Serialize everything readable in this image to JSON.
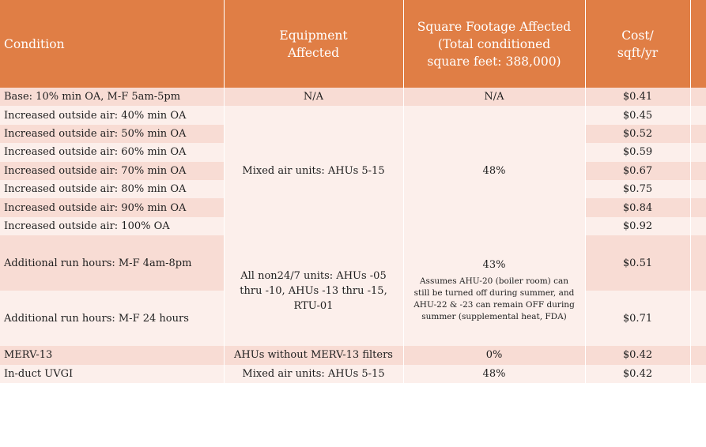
{
  "header": {
    "condition": "Condition",
    "equipment": [
      "Equipment",
      "Affected"
    ],
    "square": [
      "Square Footage Affected",
      "(Total conditioned",
      "square feet: 388,000)"
    ],
    "cost": [
      "Cost/",
      "sqft/yr"
    ]
  },
  "rows": [
    {
      "condition": "Base: 10% min OA, M-F 5am-5pm",
      "equipment": "N/A",
      "square": "N/A",
      "cost": "$0.41"
    },
    {
      "condition": "Increased outside air: 40% min OA",
      "cost": "$0.45"
    },
    {
      "condition": "Increased outside air: 50% min OA",
      "cost": "$0.52"
    },
    {
      "condition": "Increased outside air: 60% min OA",
      "cost": "$0.59"
    },
    {
      "condition": "Increased outside air: 70% min OA",
      "cost": "$0.67"
    },
    {
      "condition": "Increased outside air: 80% min OA",
      "cost": "$0.75"
    },
    {
      "condition": "Increased outside air: 90% min OA",
      "cost": "$0.84"
    },
    {
      "condition": "Increased outside air: 100% OA",
      "cost": "$0.92"
    },
    {
      "condition": "Additional run hours: M-F 4am-8pm",
      "cost": "$0.51"
    },
    {
      "condition": "Additional run hours: M-F 24 hours",
      "cost": "$0.71"
    },
    {
      "condition": "MERV-13",
      "equipment": "AHUs without MERV-13 filters",
      "square": "0%",
      "cost": "$0.42"
    },
    {
      "condition": "In-duct UVGI",
      "equipment": "Mixed air units: AHUs 5-15",
      "square": "48%",
      "cost": "$0.42"
    }
  ],
  "groups": {
    "oa_equipment": "Mixed air units: AHUs 5-15",
    "oa_square": "48%",
    "run_equipment": "All non24/7 units: AHUs -05 thru -10, AHUs -13 thru -15, RTU-01",
    "run_square_pct": "43%",
    "run_square_note": "Assumes AHU-20 (boiler room) can still be turned off during summer, and AHU-22 & -23 can remain OFF during summer (supplemental heat, FDA)"
  }
}
